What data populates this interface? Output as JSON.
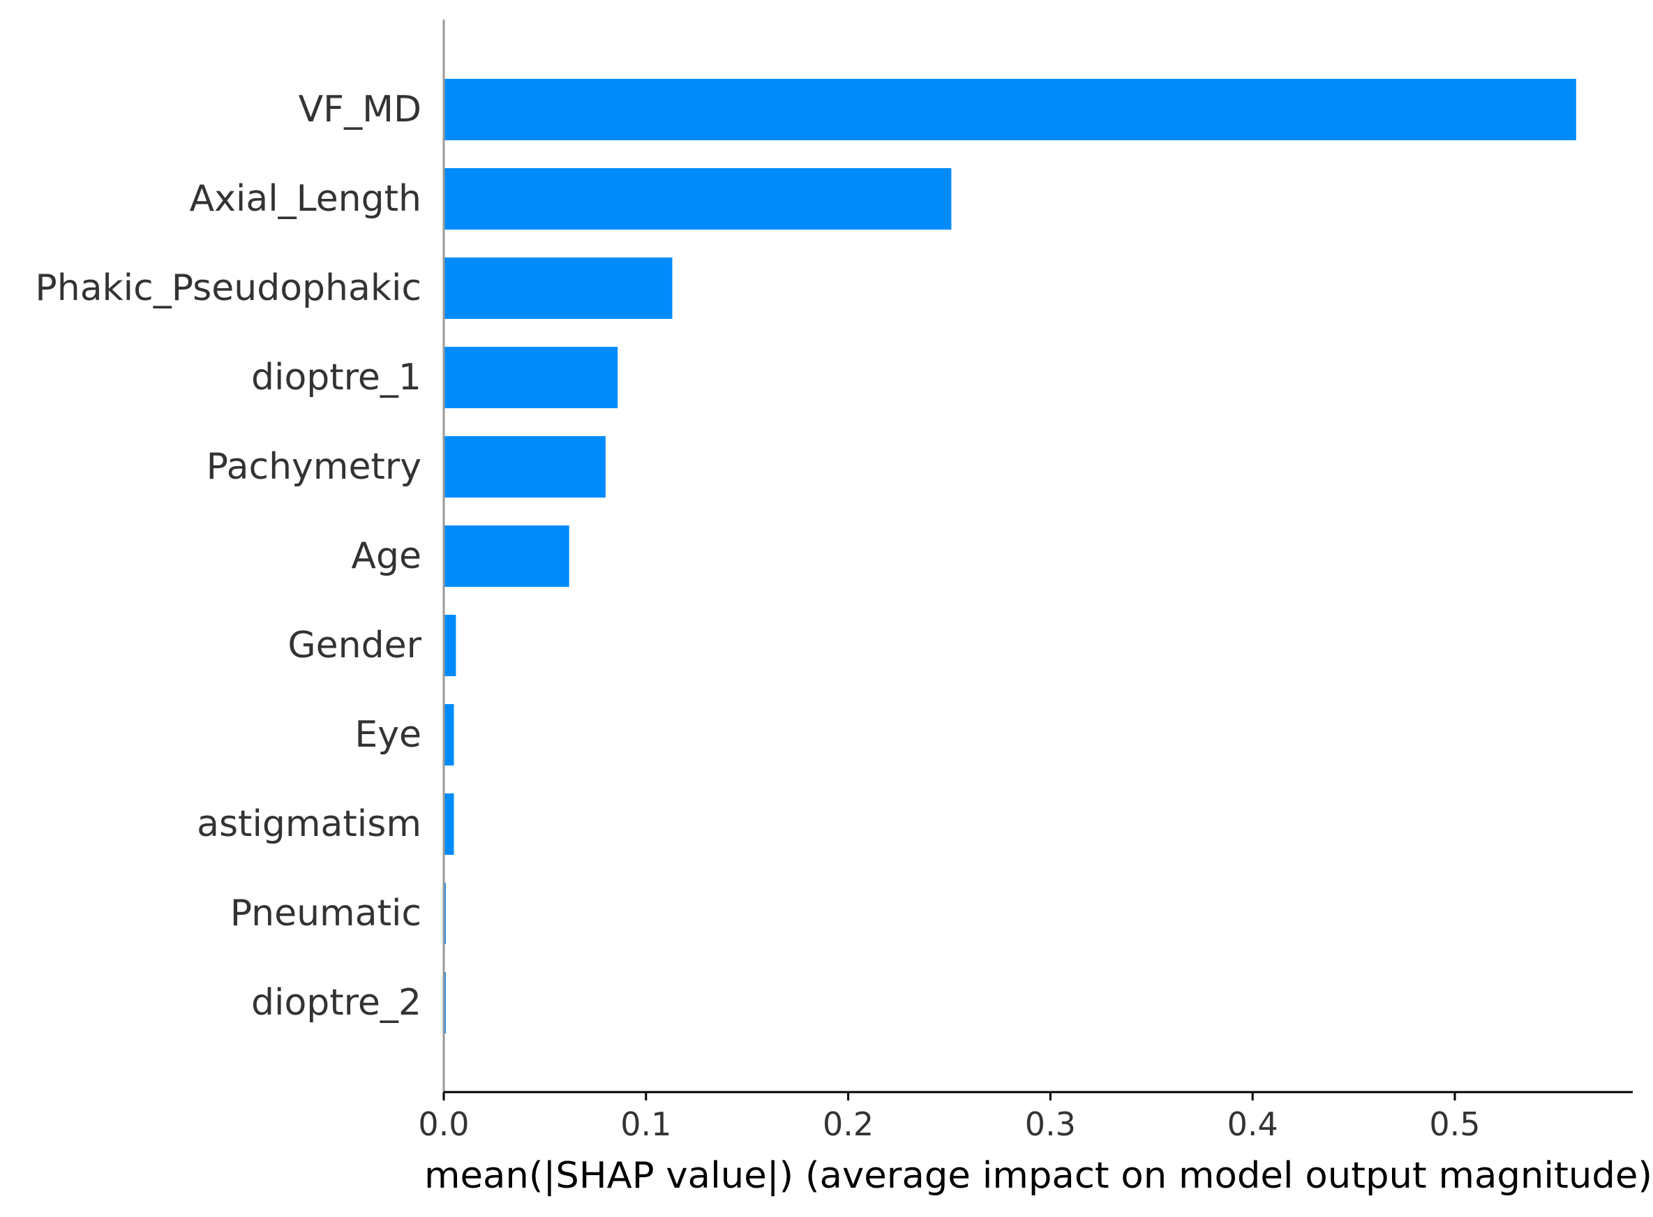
{
  "chart_data": {
    "type": "bar",
    "orientation": "horizontal",
    "categories": [
      "VF_MD",
      "Axial_Length",
      "Phakic_Pseudophakic",
      "dioptre_1",
      "Pachymetry",
      "Age",
      "Gender",
      "Eye",
      "astigmatism",
      "Pneumatic",
      "dioptre_2"
    ],
    "values": [
      0.56,
      0.251,
      0.113,
      0.086,
      0.08,
      0.062,
      0.006,
      0.005,
      0.005,
      0.001,
      0.001
    ],
    "xlabel": "mean(|SHAP value|) (average impact on model output magnitude)",
    "ylabel": "",
    "xlim": [
      0,
      0.588
    ],
    "xticks": [
      0.0,
      0.1,
      0.2,
      0.3,
      0.4,
      0.5
    ],
    "xtick_labels": [
      "0.0",
      "0.1",
      "0.2",
      "0.3",
      "0.4",
      "0.5"
    ],
    "grid": false,
    "bar_color": "#008bfb",
    "axis_color": "#000000",
    "zero_line_color": "#999999"
  }
}
